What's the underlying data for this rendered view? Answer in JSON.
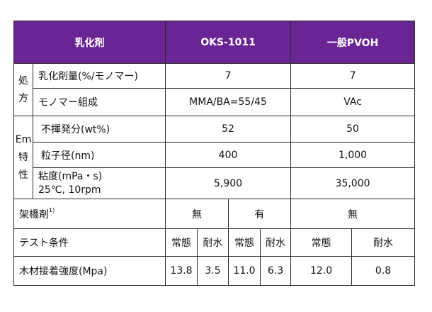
{
  "header": {
    "col_agent": "乳化剤",
    "col_oks": "OKS-1011",
    "col_pvoh": "一般PVOH"
  },
  "groups": {
    "formulation": [
      "処",
      "方"
    ],
    "emulsion": [
      "Em",
      "特",
      "性"
    ]
  },
  "rows": {
    "emulsifier_amount": {
      "label": "乳化剤量(%/モノマー)",
      "oks": "7",
      "pvoh": "7"
    },
    "monomer_composition": {
      "label": "モノマー組成",
      "oks": "MMA/BA=55/45",
      "pvoh": "VAc"
    },
    "nonvolatile": {
      "label": "不揮発分(wt%)",
      "oks": "52",
      "pvoh": "50"
    },
    "particle_size": {
      "label": "粒子径(nm)",
      "oks": "400",
      "pvoh": "1,000"
    },
    "viscosity": {
      "label_line1": "粘度(mPa・s)",
      "label_line2": "25℃, 10rpm",
      "oks": "5,900",
      "pvoh": "35,000"
    },
    "crosslinker": {
      "label": "架橋剤",
      "footnote": "1)",
      "oks_a": "無",
      "oks_b": "有",
      "pvoh": "無"
    },
    "test_conditions": {
      "label": "テスト条件",
      "oks_normal": "常態",
      "oks_water": "耐水",
      "oks_normal2": "常態",
      "oks_water2": "耐水",
      "pvoh_normal": "常態",
      "pvoh_water": "耐水"
    },
    "bond_strength": {
      "label": "木材接着強度(Mpa)",
      "v1": "13.8",
      "v2": "3.5",
      "v3": "11.0",
      "v4": "6.3",
      "v5": "12.0",
      "v6": "0.8"
    }
  },
  "colors": {
    "header_bg": "#6a2594",
    "header_text": "#ffffff",
    "border": "#2b2b2b"
  }
}
